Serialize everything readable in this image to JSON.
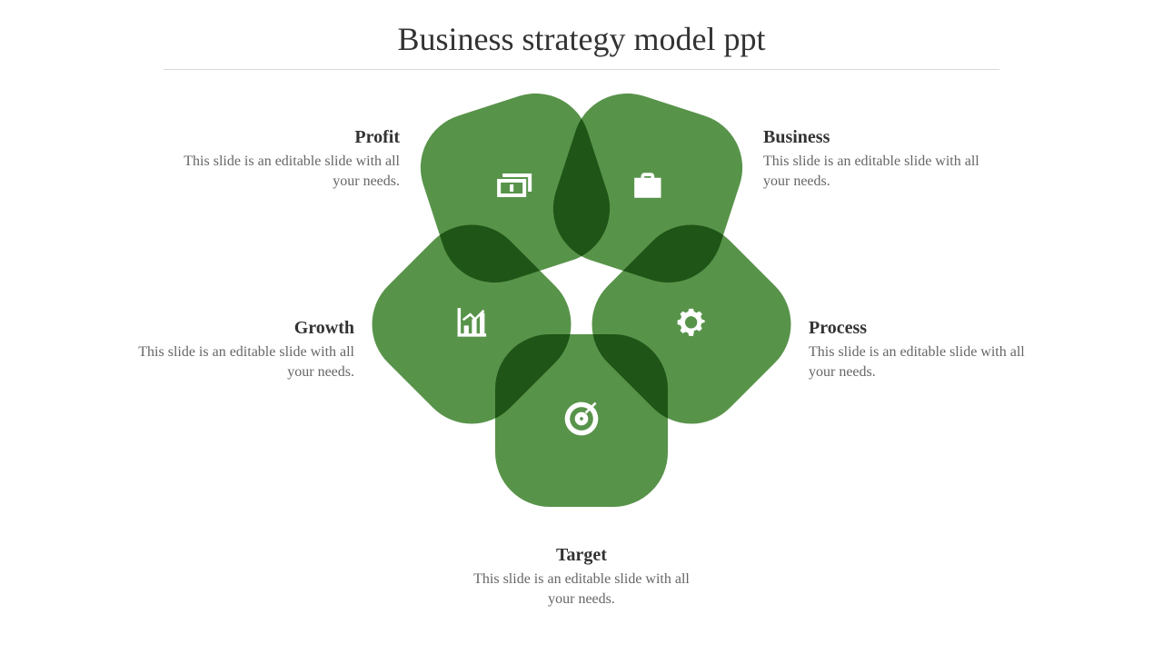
{
  "title": "Business strategy model ppt",
  "petal_color": "#4a8a3a",
  "petal_opacity": 0.92,
  "petal_border_radius": 60,
  "petal_size": 190,
  "title_color": "#333333",
  "title_fontsize": 36,
  "heading_color": "#333333",
  "heading_fontsize": 20,
  "desc_color": "#666666",
  "desc_fontsize": 16,
  "rule_color": "#d9d9d9",
  "background_color": "#ffffff",
  "diagram": {
    "type": "radial-petal",
    "count": 5
  },
  "petals": [
    {
      "key": "profit",
      "heading": "Profit",
      "desc": "This slide is an editable slide with all your needs.",
      "icon": "money",
      "angle_deg": -18
    },
    {
      "key": "business",
      "heading": "Business",
      "desc": "This slide is an editable slide with all your needs.",
      "icon": "briefcase",
      "angle_deg": 18
    },
    {
      "key": "process",
      "heading": "Process",
      "desc": "This slide is an editable slide with all your needs.",
      "icon": "gear",
      "angle_deg": 45
    },
    {
      "key": "target",
      "heading": "Target",
      "desc": "This slide is an editable slide with all your needs.",
      "icon": "target",
      "angle_deg": 0
    },
    {
      "key": "growth",
      "heading": "Growth",
      "desc": "This slide is an editable slide with all your needs.",
      "icon": "chart",
      "angle_deg": -45
    }
  ]
}
